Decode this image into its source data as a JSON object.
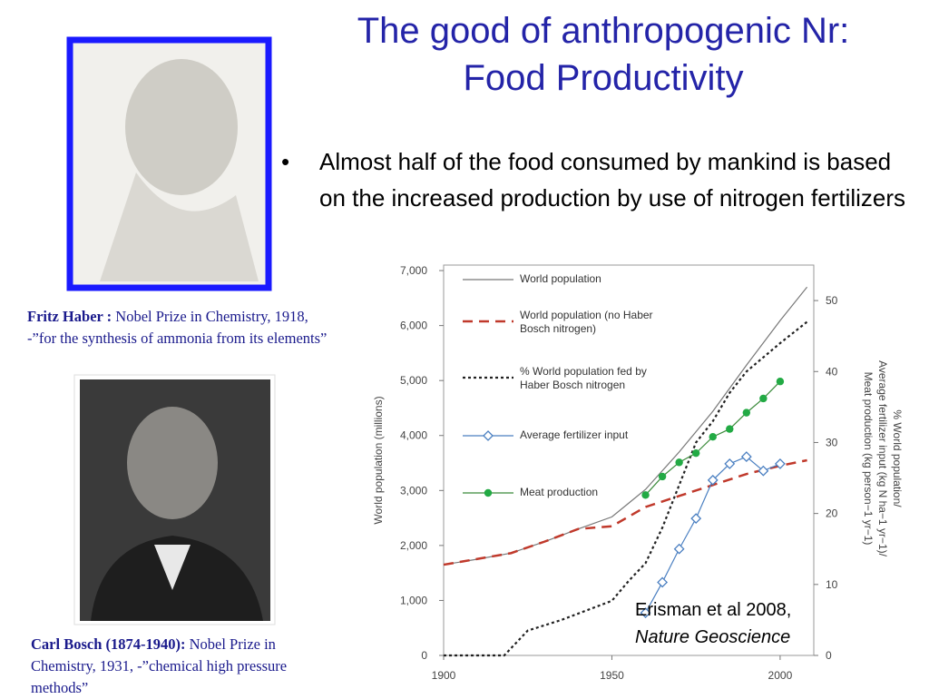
{
  "title": [
    "The good of anthropogenic Nr:",
    "Food Productivity"
  ],
  "bullet": "Almost half of the food consumed by mankind is based on the increased production by use of nitrogen fertilizers",
  "captions": [
    {
      "bold": "Fritz Haber :",
      "text": "Nobel Prize in Chemistry, 1918,   -”for the synthesis of ammonia from its elements”"
    },
    {
      "bold": "Carl Bosch (1874-1940):",
      "text": "Nobel Prize in Chemistry, 1931,  -”chemical high pressure methods”"
    }
  ],
  "citation": {
    "text": "Erisman et al 2008,",
    "journal": "Nature Geoscience"
  },
  "chart_data": {
    "type": "line",
    "ylabel": "World population (millions)",
    "y2label": [
      "% World population/",
      "Average fertilizer input (kg N ha−1 yr−1)/",
      "Meat production (kg person−1 yr−1)"
    ],
    "xlim": [
      1900,
      2010
    ],
    "xticks": [
      1900,
      1950,
      2000
    ],
    "ylim": [
      0,
      7100
    ],
    "yticks": [
      0,
      {
        "value": 1000,
        "label": "1,000"
      },
      {
        "value": 2000,
        "label": "2,000"
      },
      {
        "value": 3000,
        "label": "3,000"
      },
      {
        "value": 4000,
        "label": "4,000"
      },
      {
        "value": 5000,
        "label": "5,000"
      },
      {
        "value": 6000,
        "label": "6,000"
      },
      {
        "value": 7000,
        "label": "7,000"
      }
    ],
    "y2lim": [
      0,
      55
    ],
    "y2ticks": [
      0,
      10,
      20,
      30,
      40,
      50
    ],
    "series": [
      {
        "name": "World population",
        "color": "#777777",
        "style": "solid",
        "axis": "y",
        "x": [
          1900,
          1910,
          1920,
          1930,
          1940,
          1950,
          1955,
          1960,
          1970,
          1980,
          1990,
          2000,
          2008
        ],
        "values": [
          1650,
          1750,
          1860,
          2070,
          2300,
          2520,
          2770,
          3020,
          3700,
          4440,
          5280,
          6090,
          6700
        ]
      },
      {
        "name": "World population (no Haber Bosch nitrogen)",
        "color": "#c0392b",
        "style": "dashed",
        "axis": "y",
        "x": [
          1900,
          1920,
          1930,
          1940,
          1950,
          1960,
          1970,
          1980,
          1990,
          2000,
          2008
        ],
        "values": [
          1650,
          1860,
          2070,
          2300,
          2350,
          2700,
          2900,
          3100,
          3300,
          3450,
          3550
        ]
      },
      {
        "name": "% World population fed by Haber Bosch nitrogen",
        "color": "#222222",
        "style": "dotted",
        "axis": "y2",
        "x": [
          1900,
          1918,
          1925,
          1935,
          1950,
          1955,
          1960,
          1965,
          1970,
          1975,
          1980,
          1985,
          1990,
          2000,
          2008
        ],
        "values": [
          0,
          0,
          3.5,
          5,
          7.7,
          10.5,
          13,
          18,
          24,
          30,
          33,
          37,
          40,
          44,
          47
        ]
      },
      {
        "name": "Average fertilizer input",
        "color": "#4a7fc1",
        "style": "solid",
        "marker": "diamond",
        "axis": "y2",
        "x": [
          1960,
          1965,
          1970,
          1975,
          1980,
          1985,
          1990,
          1995,
          2000
        ],
        "values": [
          6,
          10.3,
          15,
          19.3,
          24.7,
          27,
          28,
          26,
          27
        ]
      },
      {
        "name": "Meat production",
        "color": "#3a8a3a",
        "style": "solid",
        "marker": "circle",
        "axis": "y2",
        "x": [
          1960,
          1965,
          1970,
          1975,
          1980,
          1985,
          1990,
          1995,
          2000
        ],
        "values": [
          22.6,
          25.2,
          27.2,
          28.5,
          30.8,
          31.9,
          34.2,
          36.2,
          38.6
        ]
      }
    ]
  }
}
